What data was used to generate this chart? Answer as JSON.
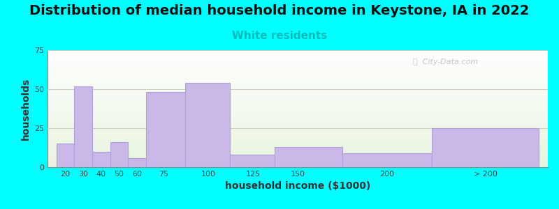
{
  "title": "Distribution of median household income in Keystone, IA in 2022",
  "subtitle": "White residents",
  "subtitle_color": "#00BBBB",
  "xlabel": "household income ($1000)",
  "ylabel": "households",
  "bar_labels": [
    "20",
    "30",
    "40",
    "50",
    "60",
    "75",
    "100",
    "125",
    "150",
    "200",
    "> 200"
  ],
  "bar_heights": [
    15,
    52,
    10,
    16,
    6,
    48,
    54,
    8,
    13,
    9,
    25
  ],
  "bar_lefts": [
    15,
    25,
    35,
    45,
    55,
    65,
    87,
    112,
    137,
    175,
    225
  ],
  "bar_rights": [
    25,
    35,
    45,
    55,
    65,
    87,
    112,
    137,
    175,
    225,
    285
  ],
  "xtick_positions": [
    20,
    30,
    40,
    50,
    60,
    75,
    100,
    125,
    150,
    200,
    255
  ],
  "bar_color": "#C9B8E8",
  "bar_edge_color": "#B0A0D8",
  "ylim": [
    0,
    75
  ],
  "xlim": [
    10,
    290
  ],
  "yticks": [
    0,
    25,
    50,
    75
  ],
  "background_color": "#00FFFF",
  "plot_bg_colors": [
    "#FFFFFF",
    "#E8F4E0"
  ],
  "title_fontsize": 14,
  "subtitle_fontsize": 11,
  "axis_label_fontsize": 10,
  "tick_fontsize": 8,
  "watermark_text": "ⓘ  City-Data.com",
  "watermark_color": "#BBBBBB"
}
